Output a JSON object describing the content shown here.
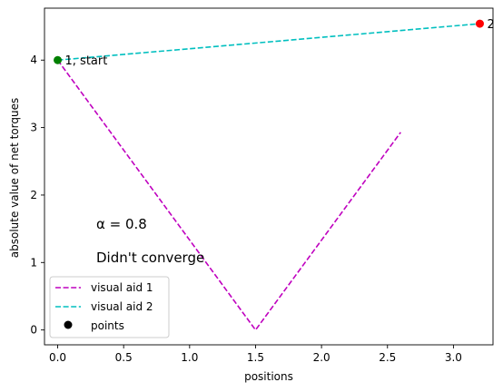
{
  "chart_data": {
    "type": "line",
    "xlabel": "positions",
    "ylabel": "absolute value of net torques",
    "xlim": [
      -0.1,
      3.3
    ],
    "ylim": [
      -0.22,
      4.77
    ],
    "xticks": [
      0.0,
      0.5,
      1.0,
      1.5,
      2.0,
      2.5,
      3.0
    ],
    "xtick_labels": [
      "0.0",
      "0.5",
      "1.0",
      "1.5",
      "2.0",
      "2.5",
      "3.0"
    ],
    "yticks": [
      0,
      1,
      2,
      3,
      4
    ],
    "ytick_labels": [
      "0",
      "1",
      "2",
      "3",
      "4"
    ],
    "grid": false,
    "legend_position": "lower-left",
    "series": [
      {
        "name": "visual aid 1",
        "style": "dashed",
        "color": "#bf00bf",
        "x": [
          0.0,
          1.5,
          2.6
        ],
        "y": [
          4.0,
          0.0,
          2.93
        ]
      },
      {
        "name": "visual aid 2",
        "style": "dashed",
        "color": "#00bfbf",
        "x": [
          0.0,
          3.2
        ],
        "y": [
          4.0,
          4.54
        ]
      },
      {
        "name": "points",
        "style": "scatter",
        "color": "#000000",
        "points": [
          {
            "x": 0.0,
            "y": 4.0,
            "color": "#008000",
            "label": "1, start"
          },
          {
            "x": 3.2,
            "y": 4.54,
            "color": "#ff0000",
            "label": "2"
          }
        ]
      }
    ],
    "annotations": {
      "alpha": "α = 0.8",
      "status": "Didn't converge"
    }
  }
}
